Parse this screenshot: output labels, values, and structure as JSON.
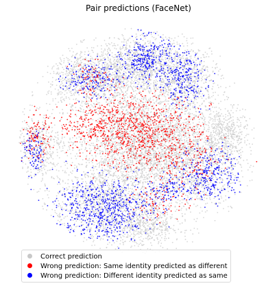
{
  "chart_data": {
    "type": "scatter",
    "title": "Pair predictions (FaceNet)",
    "xlabel": "",
    "ylabel": "",
    "axes_visible": false,
    "grid": false,
    "legend_position": "bottom-left",
    "series": [
      {
        "name": "Correct prediction",
        "color": "#c8c8c8",
        "point_count_approx": 9000,
        "clusters": [
          {
            "cx": 0.0,
            "cy": 0.0,
            "sx": 0.28,
            "sy": 0.22,
            "w": 0.28
          },
          {
            "cx": -0.4,
            "cy": 0.55,
            "sx": 0.18,
            "sy": 0.13,
            "w": 0.12
          },
          {
            "cx": 0.02,
            "cy": 0.68,
            "sx": 0.17,
            "sy": 0.13,
            "w": 0.1
          },
          {
            "cx": 0.38,
            "cy": 0.52,
            "sx": 0.15,
            "sy": 0.16,
            "w": 0.08
          },
          {
            "cx": -0.85,
            "cy": -0.05,
            "sx": 0.1,
            "sy": 0.14,
            "w": 0.05
          },
          {
            "cx": -0.28,
            "cy": -0.55,
            "sx": 0.22,
            "sy": 0.18,
            "w": 0.14
          },
          {
            "cx": 0.42,
            "cy": -0.22,
            "sx": 0.2,
            "sy": 0.22,
            "w": 0.13
          },
          {
            "cx": 0.06,
            "cy": -0.75,
            "sx": 0.14,
            "sy": 0.1,
            "w": 0.05
          },
          {
            "cx": 0.72,
            "cy": 0.05,
            "sx": 0.09,
            "sy": 0.12,
            "w": 0.05
          }
        ]
      },
      {
        "name": "Wrong prediction: Same identity predicted as different",
        "color": "#ff0000",
        "point_count_approx": 1300,
        "clusters": [
          {
            "cx": 0.0,
            "cy": 0.08,
            "sx": 0.24,
            "sy": 0.17,
            "w": 0.55
          },
          {
            "cx": -0.38,
            "cy": 0.14,
            "sx": 0.15,
            "sy": 0.1,
            "w": 0.15
          },
          {
            "cx": -0.86,
            "cy": 0.02,
            "sx": 0.06,
            "sy": 0.1,
            "w": 0.08
          },
          {
            "cx": 0.4,
            "cy": -0.2,
            "sx": 0.16,
            "sy": 0.16,
            "w": 0.12
          },
          {
            "cx": -0.38,
            "cy": 0.55,
            "sx": 0.1,
            "sy": 0.07,
            "w": 0.05
          },
          {
            "cx": 0.15,
            "cy": -0.55,
            "sx": 0.12,
            "sy": 0.08,
            "w": 0.05
          }
        ]
      },
      {
        "name": "Wrong prediction: Different identity predicted as same",
        "color": "#0000ff",
        "point_count_approx": 1700,
        "clusters": [
          {
            "cx": -0.3,
            "cy": -0.6,
            "sx": 0.2,
            "sy": 0.14,
            "w": 0.34
          },
          {
            "cx": 0.05,
            "cy": 0.72,
            "sx": 0.1,
            "sy": 0.1,
            "w": 0.16
          },
          {
            "cx": 0.35,
            "cy": 0.55,
            "sx": 0.1,
            "sy": 0.12,
            "w": 0.14
          },
          {
            "cx": -0.4,
            "cy": 0.55,
            "sx": 0.12,
            "sy": 0.08,
            "w": 0.1
          },
          {
            "cx": 0.58,
            "cy": -0.3,
            "sx": 0.13,
            "sy": 0.12,
            "w": 0.16
          },
          {
            "cx": -0.88,
            "cy": -0.12,
            "sx": 0.05,
            "sy": 0.1,
            "w": 0.05
          },
          {
            "cx": 0.2,
            "cy": -0.45,
            "sx": 0.08,
            "sy": 0.06,
            "w": 0.05
          }
        ]
      }
    ]
  },
  "legend": {
    "entries": [
      {
        "label": "Correct prediction",
        "color": "#c8c8c8"
      },
      {
        "label": "Wrong prediction: Same identity predicted as different",
        "color": "#ff0000"
      },
      {
        "label": "Wrong prediction: Different identity predicted as same",
        "color": "#0000ff"
      }
    ]
  }
}
